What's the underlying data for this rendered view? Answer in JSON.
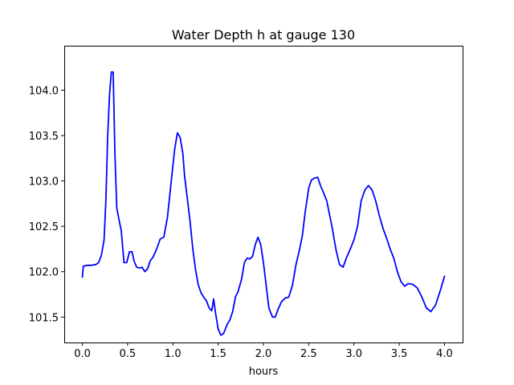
{
  "chart_data": {
    "type": "line",
    "title": "Water Depth h at gauge 130",
    "xlabel": "hours",
    "ylabel": "",
    "xlim": [
      -0.2,
      4.2
    ],
    "ylim": [
      101.22,
      104.49
    ],
    "grid": false,
    "x_ticks": [
      {
        "value": 0.0,
        "label": "0.0"
      },
      {
        "value": 0.5,
        "label": "0.5"
      },
      {
        "value": 1.0,
        "label": "1.0"
      },
      {
        "value": 1.5,
        "label": "1.5"
      },
      {
        "value": 2.0,
        "label": "2.0"
      },
      {
        "value": 2.5,
        "label": "2.5"
      },
      {
        "value": 3.0,
        "label": "3.0"
      },
      {
        "value": 3.5,
        "label": "3.5"
      },
      {
        "value": 4.0,
        "label": "4.0"
      }
    ],
    "y_ticks": [
      {
        "value": 101.5,
        "label": "101.5"
      },
      {
        "value": 102.0,
        "label": "102.0"
      },
      {
        "value": 102.5,
        "label": "102.5"
      },
      {
        "value": 103.0,
        "label": "103.0"
      },
      {
        "value": 103.5,
        "label": "103.5"
      },
      {
        "value": 104.0,
        "label": "104.0"
      }
    ],
    "series": [
      {
        "color": "#0000ff",
        "x": [
          0.0,
          0.01,
          0.05,
          0.1,
          0.15,
          0.18,
          0.21,
          0.24,
          0.26,
          0.28,
          0.3,
          0.32,
          0.34,
          0.36,
          0.38,
          0.4,
          0.43,
          0.46,
          0.49,
          0.52,
          0.55,
          0.57,
          0.6,
          0.63,
          0.66,
          0.69,
          0.72,
          0.75,
          0.78,
          0.82,
          0.86,
          0.9,
          0.94,
          0.98,
          1.02,
          1.05,
          1.08,
          1.11,
          1.13,
          1.16,
          1.19,
          1.22,
          1.25,
          1.28,
          1.31,
          1.34,
          1.37,
          1.4,
          1.43,
          1.45,
          1.47,
          1.5,
          1.53,
          1.56,
          1.6,
          1.63,
          1.66,
          1.69,
          1.72,
          1.76,
          1.79,
          1.82,
          1.85,
          1.88,
          1.91,
          1.94,
          1.97,
          2.0,
          2.03,
          2.06,
          2.1,
          2.13,
          2.16,
          2.2,
          2.24,
          2.28,
          2.32,
          2.36,
          2.4,
          2.43,
          2.46,
          2.5,
          2.53,
          2.56,
          2.6,
          2.63,
          2.66,
          2.7,
          2.73,
          2.76,
          2.8,
          2.84,
          2.88,
          2.92,
          2.96,
          3.0,
          3.04,
          3.08,
          3.12,
          3.16,
          3.2,
          3.24,
          3.28,
          3.32,
          3.36,
          3.4,
          3.44,
          3.48,
          3.52,
          3.56,
          3.6,
          3.65,
          3.7,
          3.75,
          3.8,
          3.85,
          3.9,
          3.95,
          4.0
        ],
        "y": [
          101.94,
          102.06,
          102.07,
          102.07,
          102.08,
          102.1,
          102.18,
          102.35,
          102.8,
          103.5,
          103.95,
          104.2,
          104.2,
          103.3,
          102.7,
          102.6,
          102.45,
          102.1,
          102.1,
          102.22,
          102.22,
          102.12,
          102.05,
          102.04,
          102.05,
          102.0,
          102.03,
          102.12,
          102.16,
          102.25,
          102.36,
          102.38,
          102.6,
          102.98,
          103.35,
          103.53,
          103.48,
          103.3,
          103.05,
          102.8,
          102.55,
          102.25,
          102.02,
          101.86,
          101.77,
          101.72,
          101.68,
          101.6,
          101.57,
          101.7,
          101.55,
          101.37,
          101.3,
          101.32,
          101.42,
          101.47,
          101.56,
          101.72,
          101.78,
          101.92,
          102.1,
          102.15,
          102.14,
          102.17,
          102.3,
          102.38,
          102.3,
          102.1,
          101.85,
          101.6,
          101.5,
          101.5,
          101.58,
          101.67,
          101.71,
          101.72,
          101.85,
          102.08,
          102.25,
          102.4,
          102.65,
          102.92,
          103.01,
          103.03,
          103.04,
          102.95,
          102.88,
          102.78,
          102.63,
          102.48,
          102.25,
          102.08,
          102.05,
          102.16,
          102.25,
          102.35,
          102.5,
          102.78,
          102.9,
          102.95,
          102.9,
          102.78,
          102.62,
          102.48,
          102.37,
          102.25,
          102.15,
          102.0,
          101.89,
          101.84,
          101.87,
          101.86,
          101.82,
          101.72,
          101.6,
          101.56,
          101.63,
          101.78,
          101.95
        ]
      }
    ]
  }
}
